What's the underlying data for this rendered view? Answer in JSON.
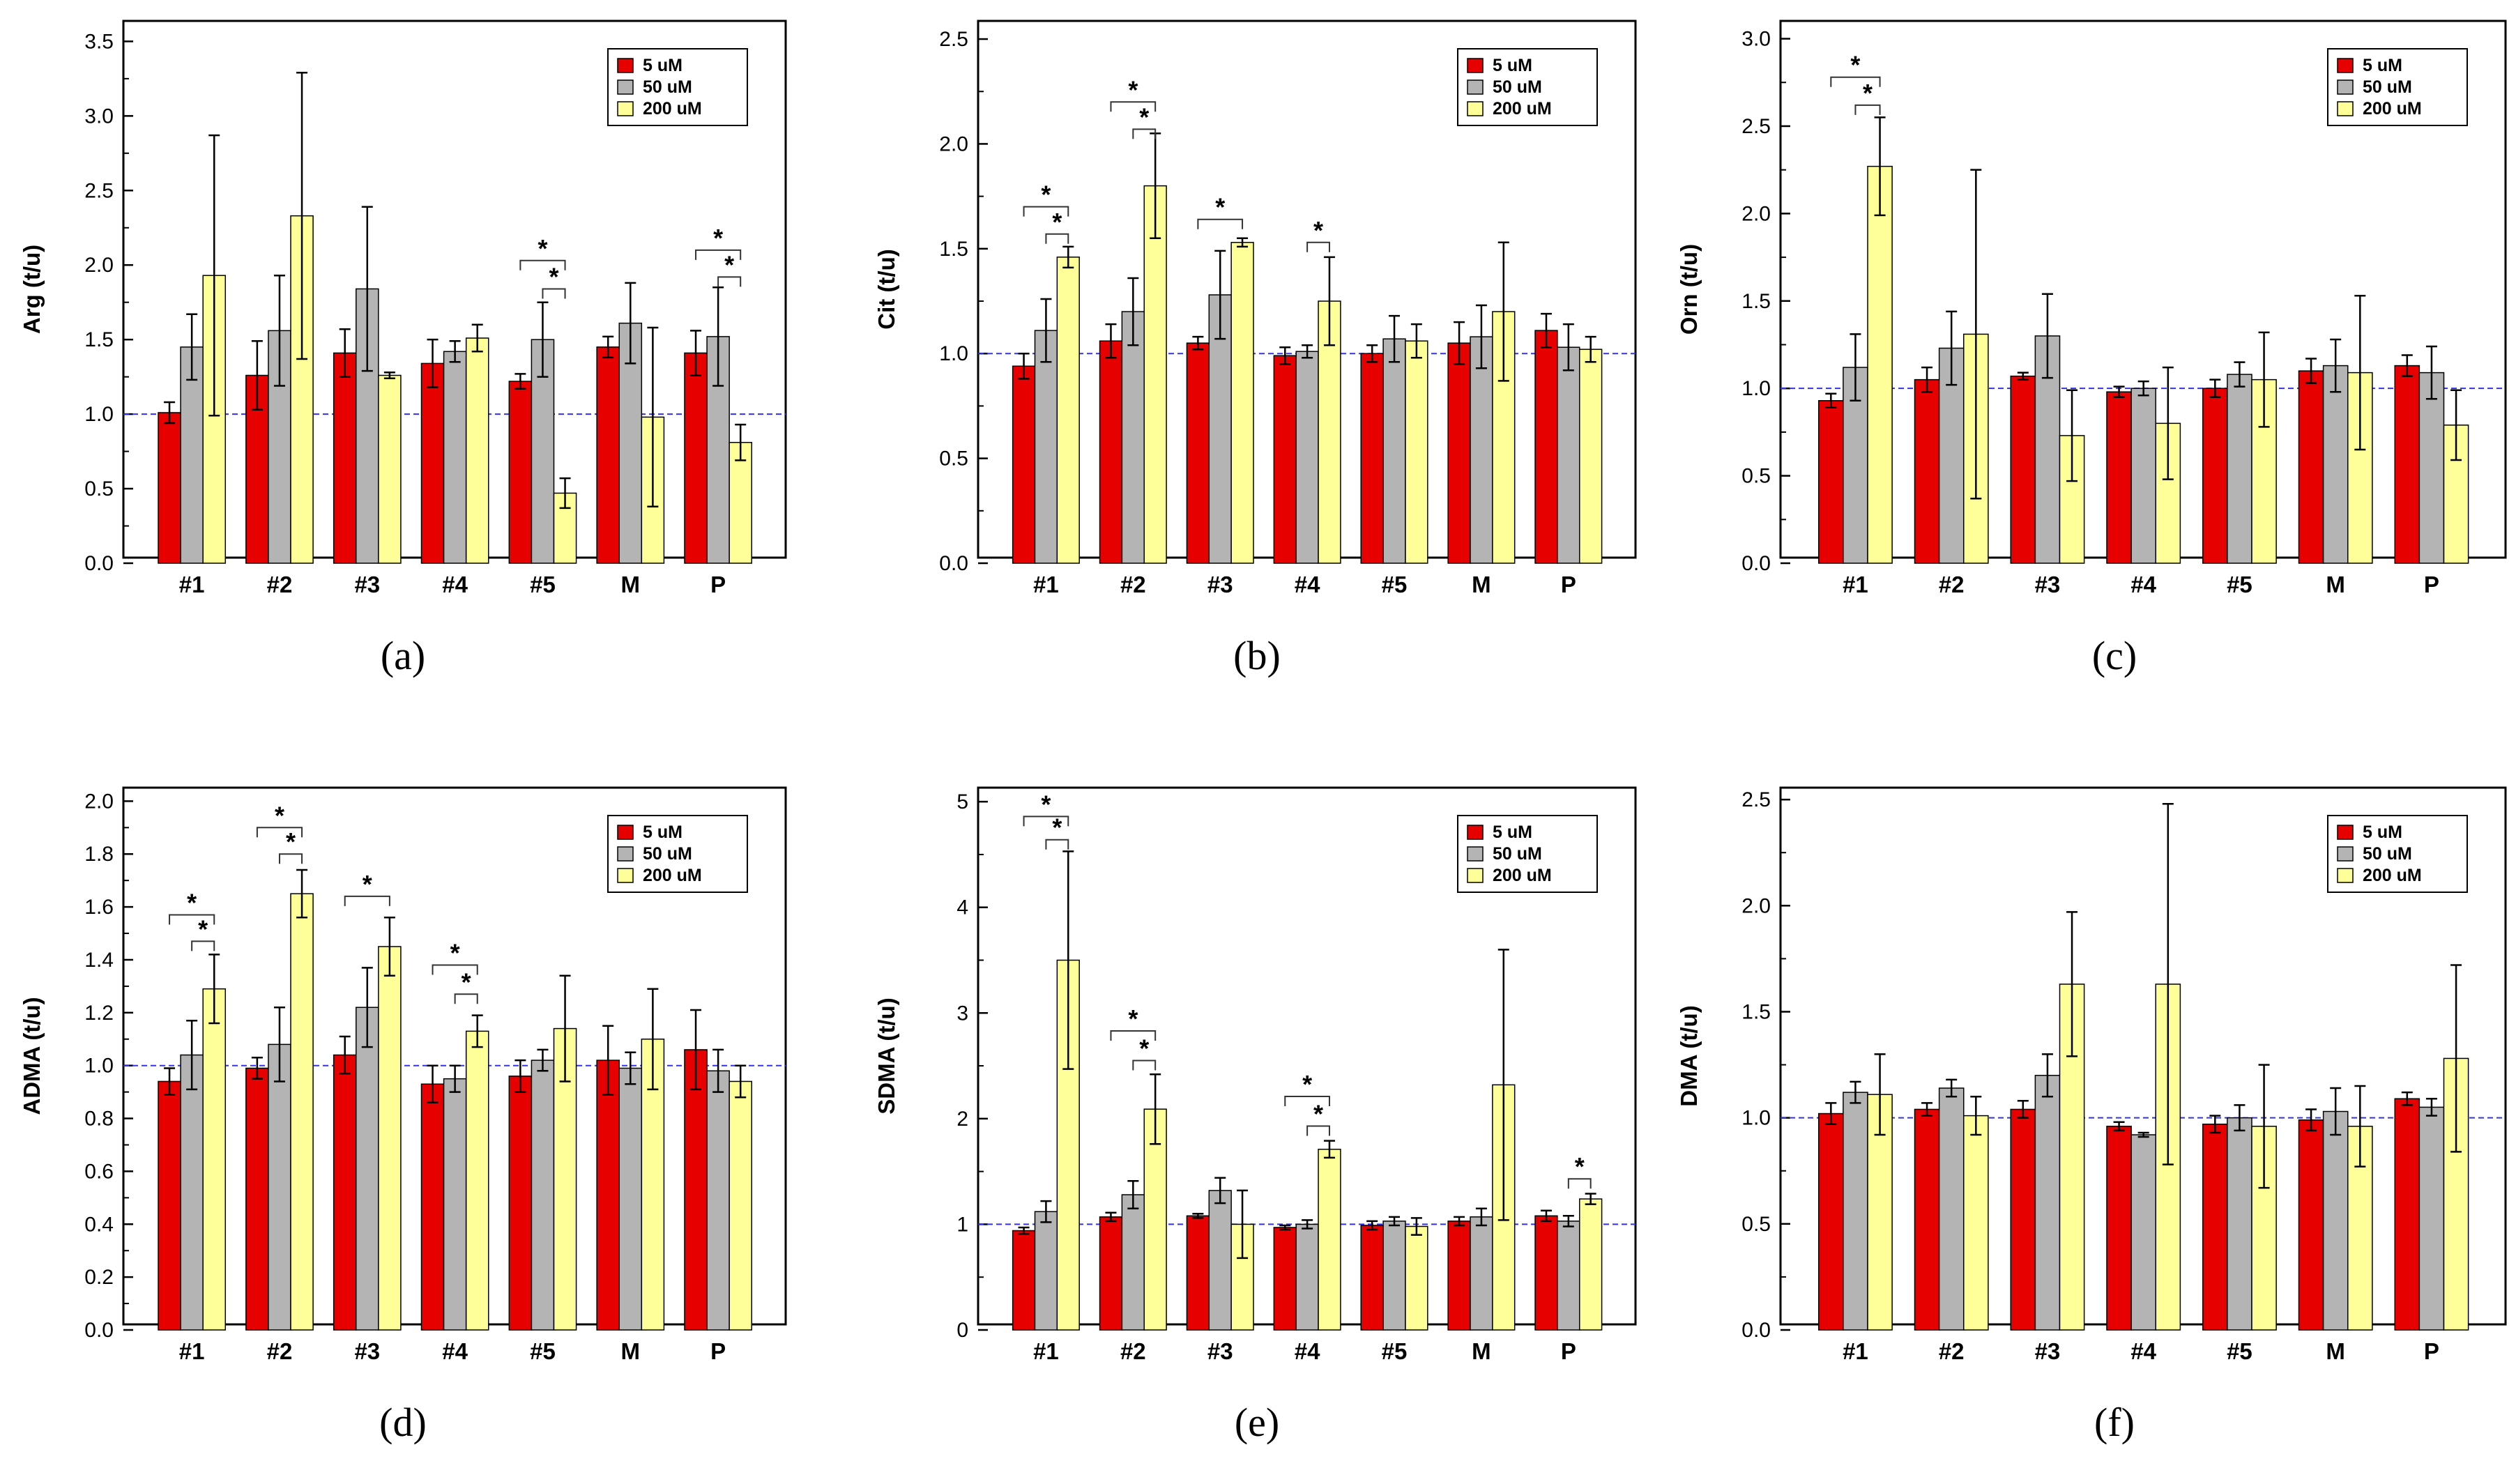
{
  "colors": {
    "series": [
      "#e60000",
      "#b4b4b4",
      "#ffff99"
    ],
    "reference_line": "#3333ee"
  },
  "chart_data": [
    {
      "type": "bar",
      "panel": "(a)",
      "ylabel": "Arg  (t/u)",
      "ylim": [
        0,
        3.6
      ],
      "yticks": [
        "0.0",
        "0.5",
        "1.0",
        "1.5",
        "2.0",
        "2.5",
        "3.0",
        "3.5"
      ],
      "reference": 1.0,
      "legend": [
        "5 uM",
        "50 uM",
        "200 uM"
      ],
      "legend_position": "top-right",
      "categories": [
        "#1",
        "#2",
        "#3",
        "#4",
        "#5",
        "M",
        "P"
      ],
      "series": [
        {
          "name": "5 uM",
          "values": [
            1.01,
            1.26,
            1.41,
            1.34,
            1.22,
            1.45,
            1.41
          ],
          "errors": [
            0.07,
            0.23,
            0.16,
            0.16,
            0.05,
            0.07,
            0.15
          ]
        },
        {
          "name": "50 uM",
          "values": [
            1.45,
            1.56,
            1.84,
            1.42,
            1.5,
            1.61,
            1.52
          ],
          "errors": [
            0.22,
            0.37,
            0.55,
            0.07,
            0.25,
            0.27,
            0.33
          ]
        },
        {
          "name": "200 uM",
          "values": [
            1.93,
            2.33,
            1.26,
            1.51,
            0.47,
            0.98,
            0.81
          ],
          "errors": [
            0.94,
            0.96,
            0.02,
            0.09,
            0.1,
            0.6,
            0.12
          ]
        }
      ],
      "significance": [
        {
          "category": 4,
          "from": 0,
          "to": 2,
          "y": 2.03,
          "label": "*"
        },
        {
          "category": 4,
          "from": 1,
          "to": 2,
          "y": 1.84,
          "label": "*"
        },
        {
          "category": 6,
          "from": 0,
          "to": 2,
          "y": 2.1,
          "label": "*"
        },
        {
          "category": 6,
          "from": 1,
          "to": 2,
          "y": 1.92,
          "label": "*"
        }
      ]
    },
    {
      "type": "bar",
      "panel": "(b)",
      "ylabel": "Cit  (t/u)",
      "ylim": [
        0,
        2.56
      ],
      "yticks": [
        "0.0",
        "0.5",
        "1.0",
        "1.5",
        "2.0",
        "2.5"
      ],
      "reference": 1.0,
      "legend": [
        "5 uM",
        "50 uM",
        "200 uM"
      ],
      "legend_position": "top-right",
      "categories": [
        "#1",
        "#2",
        "#3",
        "#4",
        "#5",
        "M",
        "P"
      ],
      "series": [
        {
          "name": "5 uM",
          "values": [
            0.94,
            1.06,
            1.05,
            0.99,
            1.0,
            1.05,
            1.11
          ],
          "errors": [
            0.06,
            0.08,
            0.03,
            0.04,
            0.04,
            0.1,
            0.08
          ]
        },
        {
          "name": "50 uM",
          "values": [
            1.11,
            1.2,
            1.28,
            1.01,
            1.07,
            1.08,
            1.03
          ],
          "errors": [
            0.15,
            0.16,
            0.21,
            0.03,
            0.11,
            0.15,
            0.11
          ]
        },
        {
          "name": "200 uM",
          "values": [
            1.46,
            1.8,
            1.53,
            1.25,
            1.06,
            1.2,
            1.02
          ],
          "errors": [
            0.05,
            0.25,
            0.02,
            0.21,
            0.08,
            0.33,
            0.06
          ]
        }
      ],
      "significance": [
        {
          "category": 0,
          "from": 0,
          "to": 2,
          "y": 1.7,
          "label": "*"
        },
        {
          "category": 0,
          "from": 1,
          "to": 2,
          "y": 1.57,
          "label": "*"
        },
        {
          "category": 1,
          "from": 0,
          "to": 2,
          "y": 2.2,
          "label": "*"
        },
        {
          "category": 1,
          "from": 1,
          "to": 2,
          "y": 2.07,
          "label": "*"
        },
        {
          "category": 2,
          "from": 0,
          "to": 2,
          "y": 1.64,
          "label": "*"
        },
        {
          "category": 3,
          "from": 1,
          "to": 2,
          "y": 1.53,
          "label": "*"
        }
      ]
    },
    {
      "type": "bar",
      "panel": "(c)",
      "ylabel": "Orn  (t/u)",
      "ylim": [
        0,
        3.07
      ],
      "yticks": [
        "0.0",
        "0.5",
        "1.0",
        "1.5",
        "2.0",
        "2.5",
        "3.0"
      ],
      "reference": 1.0,
      "legend": [
        "5 uM",
        "50 uM",
        "200 uM"
      ],
      "legend_position": "top-right",
      "categories": [
        "#1",
        "#2",
        "#3",
        "#4",
        "#5",
        "M",
        "P"
      ],
      "series": [
        {
          "name": "5 uM",
          "values": [
            0.93,
            1.05,
            1.07,
            0.98,
            1.0,
            1.1,
            1.13
          ],
          "errors": [
            0.04,
            0.07,
            0.02,
            0.03,
            0.05,
            0.07,
            0.06
          ]
        },
        {
          "name": "50 uM",
          "values": [
            1.12,
            1.23,
            1.3,
            1.0,
            1.08,
            1.13,
            1.09
          ],
          "errors": [
            0.19,
            0.21,
            0.24,
            0.04,
            0.07,
            0.15,
            0.15
          ]
        },
        {
          "name": "200 uM",
          "values": [
            2.27,
            1.31,
            0.73,
            0.8,
            1.05,
            1.09,
            0.79
          ],
          "errors": [
            0.28,
            0.94,
            0.26,
            0.32,
            0.27,
            0.44,
            0.2
          ]
        }
      ],
      "significance": [
        {
          "category": 0,
          "from": 0,
          "to": 2,
          "y": 2.78,
          "label": "*"
        },
        {
          "category": 0,
          "from": 1,
          "to": 2,
          "y": 2.62,
          "label": "*"
        }
      ]
    },
    {
      "type": "bar",
      "panel": "(d)",
      "ylabel": "ADMA  (t/u)",
      "ylim": [
        0,
        2.03
      ],
      "yticks": [
        "0.0",
        "0.2",
        "0.4",
        "0.6",
        "0.8",
        "1.0",
        "1.2",
        "1.4",
        "1.6",
        "1.8",
        "2.0"
      ],
      "reference": 1.0,
      "legend": [
        "5 uM",
        "50 uM",
        "200 uM"
      ],
      "legend_position": "top-right",
      "categories": [
        "#1",
        "#2",
        "#3",
        "#4",
        "#5",
        "M",
        "P"
      ],
      "series": [
        {
          "name": "5 uM",
          "values": [
            0.94,
            0.99,
            1.04,
            0.93,
            0.96,
            1.02,
            1.06
          ],
          "errors": [
            0.05,
            0.04,
            0.07,
            0.07,
            0.06,
            0.13,
            0.15
          ]
        },
        {
          "name": "50 uM",
          "values": [
            1.04,
            1.08,
            1.22,
            0.95,
            1.02,
            0.99,
            0.98
          ],
          "errors": [
            0.13,
            0.14,
            0.15,
            0.05,
            0.04,
            0.06,
            0.08
          ]
        },
        {
          "name": "200 uM",
          "values": [
            1.29,
            1.65,
            1.45,
            1.13,
            1.14,
            1.1,
            0.94
          ],
          "errors": [
            0.13,
            0.09,
            0.11,
            0.06,
            0.2,
            0.19,
            0.06
          ]
        }
      ],
      "significance": [
        {
          "category": 0,
          "from": 0,
          "to": 2,
          "y": 1.57,
          "label": "*"
        },
        {
          "category": 0,
          "from": 1,
          "to": 2,
          "y": 1.47,
          "label": "*"
        },
        {
          "category": 1,
          "from": 0,
          "to": 2,
          "y": 1.9,
          "label": "*"
        },
        {
          "category": 1,
          "from": 1,
          "to": 2,
          "y": 1.8,
          "label": "*"
        },
        {
          "category": 2,
          "from": 0,
          "to": 2,
          "y": 1.64,
          "label": "*"
        },
        {
          "category": 3,
          "from": 0,
          "to": 2,
          "y": 1.38,
          "label": "*"
        },
        {
          "category": 3,
          "from": 1,
          "to": 2,
          "y": 1.27,
          "label": "*"
        }
      ]
    },
    {
      "type": "bar",
      "panel": "(e)",
      "ylabel": "SDMA  (t/u)",
      "ylim": [
        0,
        5.08
      ],
      "yticks": [
        "0",
        "1",
        "2",
        "3",
        "4",
        "5"
      ],
      "reference": 1.0,
      "legend": [
        "5 uM",
        "50 uM",
        "200 uM"
      ],
      "legend_position": "top-right",
      "categories": [
        "#1",
        "#2",
        "#3",
        "#4",
        "#5",
        "M",
        "P"
      ],
      "series": [
        {
          "name": "5 uM",
          "values": [
            0.94,
            1.07,
            1.08,
            0.97,
            0.99,
            1.03,
            1.08
          ],
          "errors": [
            0.03,
            0.04,
            0.02,
            0.02,
            0.04,
            0.04,
            0.05
          ]
        },
        {
          "name": "50 uM",
          "values": [
            1.12,
            1.28,
            1.32,
            1.0,
            1.03,
            1.07,
            1.03
          ],
          "errors": [
            0.1,
            0.13,
            0.12,
            0.04,
            0.04,
            0.08,
            0.05
          ]
        },
        {
          "name": "200 uM",
          "values": [
            3.5,
            2.09,
            1.0,
            1.71,
            0.98,
            2.32,
            1.24
          ],
          "errors": [
            1.03,
            0.33,
            0.32,
            0.08,
            0.08,
            1.28,
            0.05
          ]
        }
      ],
      "significance": [
        {
          "category": 0,
          "from": 0,
          "to": 2,
          "y": 4.86,
          "label": "*"
        },
        {
          "category": 0,
          "from": 1,
          "to": 2,
          "y": 4.64,
          "label": "*"
        },
        {
          "category": 1,
          "from": 0,
          "to": 2,
          "y": 2.83,
          "label": "*"
        },
        {
          "category": 1,
          "from": 1,
          "to": 2,
          "y": 2.55,
          "label": "*"
        },
        {
          "category": 3,
          "from": 0,
          "to": 2,
          "y": 2.21,
          "label": "*"
        },
        {
          "category": 3,
          "from": 1,
          "to": 2,
          "y": 1.93,
          "label": "*"
        },
        {
          "category": 6,
          "from": 1,
          "to": 2,
          "y": 1.43,
          "label": "*"
        }
      ]
    },
    {
      "type": "bar",
      "panel": "(f)",
      "ylabel": "DMA  (t/u)",
      "ylim": [
        0,
        2.53
      ],
      "yticks": [
        "0.0",
        "0.5",
        "1.0",
        "1.5",
        "2.0",
        "2.5"
      ],
      "reference": 1.0,
      "legend": [
        "5 uM",
        "50 uM",
        "200 uM"
      ],
      "legend_position": "top-right",
      "categories": [
        "#1",
        "#2",
        "#3",
        "#4",
        "#5",
        "M",
        "P"
      ],
      "series": [
        {
          "name": "5 uM",
          "values": [
            1.02,
            1.04,
            1.04,
            0.96,
            0.97,
            0.99,
            1.09
          ],
          "errors": [
            0.05,
            0.03,
            0.04,
            0.02,
            0.04,
            0.05,
            0.03
          ]
        },
        {
          "name": "50 uM",
          "values": [
            1.12,
            1.14,
            1.2,
            0.92,
            1.0,
            1.03,
            1.05
          ],
          "errors": [
            0.05,
            0.04,
            0.1,
            0.01,
            0.06,
            0.11,
            0.04
          ]
        },
        {
          "name": "200 uM",
          "values": [
            1.11,
            1.01,
            1.63,
            1.63,
            0.96,
            0.96,
            1.28
          ],
          "errors": [
            0.19,
            0.09,
            0.34,
            0.85,
            0.29,
            0.19,
            0.44
          ]
        }
      ],
      "significance": []
    }
  ]
}
